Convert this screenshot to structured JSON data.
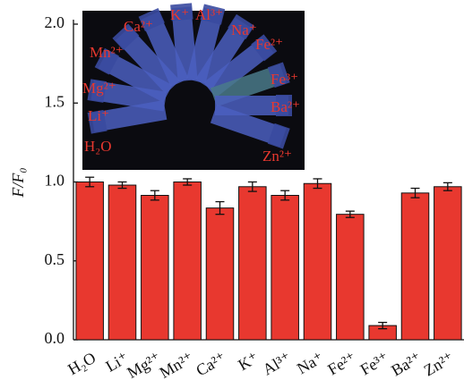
{
  "chart_data": {
    "type": "bar",
    "y_label": "F/F₀",
    "categories": [
      "H₂O",
      "Li⁺",
      "Mg²⁺",
      "Mn²⁺",
      "Ca²⁺",
      "K⁺",
      "Al³⁺",
      "Na⁺",
      "Fe²⁺",
      "Fe³⁺",
      "Ba²⁺",
      "Zn²⁺"
    ],
    "values": [
      1.0,
      0.98,
      0.915,
      1.0,
      0.835,
      0.97,
      0.915,
      0.99,
      0.795,
      0.09,
      0.93,
      0.97
    ],
    "errors": [
      0.03,
      0.02,
      0.03,
      0.02,
      0.04,
      0.03,
      0.03,
      0.03,
      0.02,
      0.02,
      0.03,
      0.025
    ],
    "color": "#e8382f",
    "ylim": [
      0,
      2.0
    ],
    "yticks": [
      {
        "value": 0,
        "label": "0.0"
      },
      {
        "value": 0.5,
        "label": "0.5"
      },
      {
        "value": 1.0,
        "label": "1.0"
      },
      {
        "value": 1.5,
        "label": "1.5"
      },
      {
        "value": 2.0,
        "label": "2.0"
      }
    ],
    "inset_labels": [
      "H₂O",
      "Li⁺",
      "Mg²⁺",
      "Mn²⁺",
      "Ca²⁺",
      "K⁺",
      "Al³⁺",
      "Na⁺",
      "Fe²⁺",
      "Fe³⁺",
      "Ba²⁺",
      "Zn²⁺"
    ]
  }
}
